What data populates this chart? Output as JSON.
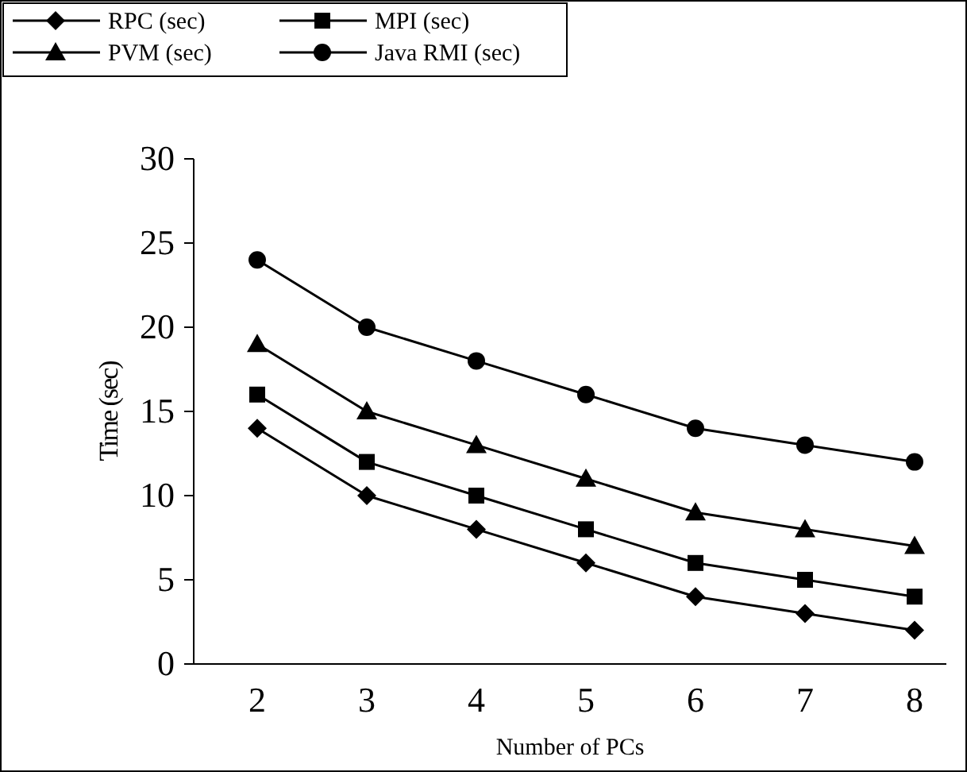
{
  "chart_data": {
    "type": "line",
    "xlabel": "Number of PCs",
    "ylabel": "Time (sec)",
    "categories": [
      "2",
      "3",
      "4",
      "5",
      "6",
      "7",
      "8"
    ],
    "ylim": [
      0,
      30
    ],
    "yticks": [
      0,
      5,
      10,
      15,
      20,
      25,
      30
    ],
    "grid": false,
    "legend": "top",
    "series": [
      {
        "name": "RPC (sec)",
        "color": "#000000",
        "marker": "diamond",
        "values": [
          14,
          10,
          8,
          6,
          4,
          3,
          2
        ]
      },
      {
        "name": "MPI (sec)",
        "color": "#000000",
        "marker": "square",
        "values": [
          16,
          12,
          10,
          8,
          6,
          5,
          4
        ]
      },
      {
        "name": "PVM (sec)",
        "color": "#000000",
        "marker": "triangle",
        "values": [
          19,
          15,
          13,
          11,
          9,
          8,
          7
        ]
      },
      {
        "name": "Java RMI (sec)",
        "color": "#000000",
        "marker": "circle",
        "values": [
          24,
          20,
          18,
          16,
          14,
          13,
          12
        ]
      }
    ]
  }
}
